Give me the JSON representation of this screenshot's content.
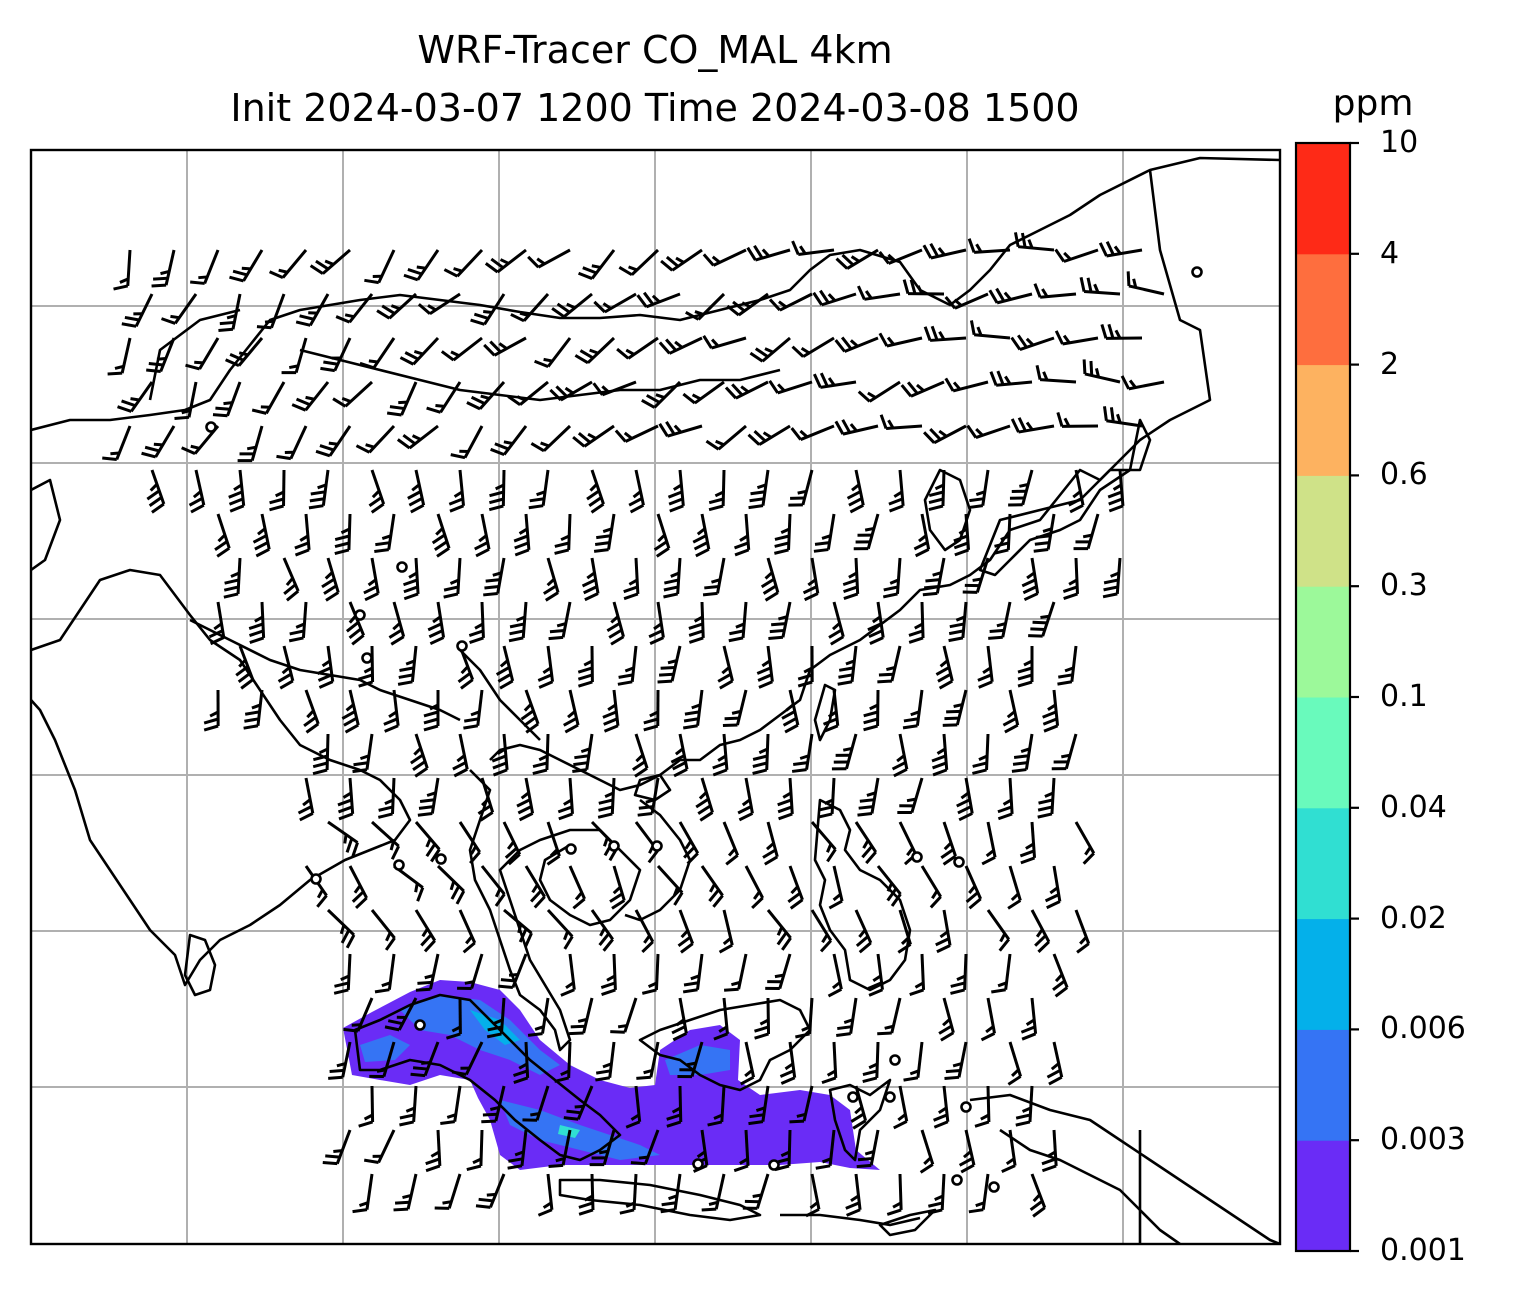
{
  "title": {
    "line1": "WRF-Tracer CO_MAL 4km",
    "line2": "Init 2024-03-07 1200 Time 2024-03-08 1500"
  },
  "colorbar": {
    "units": "ppm",
    "levels": [
      "0.001",
      "0.003",
      "0.006",
      "0.02",
      "0.04",
      "0.1",
      "0.3",
      "0.6",
      "2",
      "4",
      "10"
    ],
    "colors": [
      "#6a2cf6",
      "#3574f4",
      "#04b0ea",
      "#30dfd2",
      "#69fabc",
      "#9cf99a",
      "#cfe288",
      "#fdb260",
      "#fe6e3e",
      "#fe2a17"
    ]
  },
  "map": {
    "gridlines": true,
    "barbs": "wind barbs over map domain",
    "tracer_color_low": "#6a2cf6",
    "tracer_color_mid": "#3574f4",
    "tracer_color_hi": "#04b0ea"
  }
}
